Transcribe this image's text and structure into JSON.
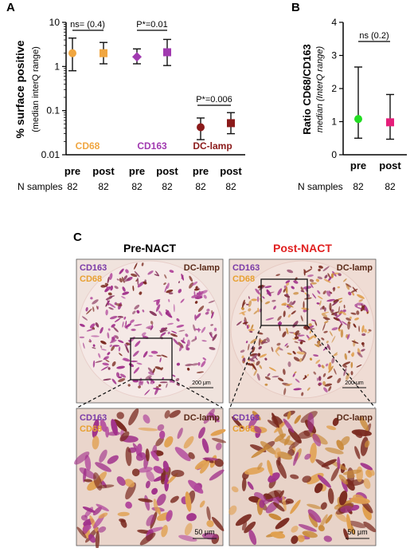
{
  "panels": {
    "a": "A",
    "b": "B",
    "c": "C"
  },
  "colors": {
    "cd68": "#f0a640",
    "cd163": "#a13ab0",
    "dclamp": "#8b1a1a",
    "ratio_pre": "#22dd22",
    "ratio_post": "#e61e7a",
    "post_nact_title": "#e02020",
    "tissue_bg": "#efdcd6"
  },
  "sample_row": {
    "label": "N samples"
  },
  "chart_data": [
    {
      "type": "scatter",
      "panel": "A",
      "ylabel": "% surface positive",
      "ylabel_sub": "(median interQ range)",
      "yscale": "log",
      "ylim": [
        0.01,
        10
      ],
      "yticks": [
        "0.01",
        "0.1",
        "1",
        "10"
      ],
      "groups": [
        "CD68",
        "CD163",
        "DC-lamp"
      ],
      "categories": [
        "pre",
        "post",
        "pre",
        "post",
        "pre",
        "post"
      ],
      "series": [
        {
          "name": "CD68",
          "x": [
            "pre",
            "post"
          ],
          "median": [
            2.0,
            2.0
          ],
          "q1": [
            0.8,
            1.15
          ],
          "q3": [
            4.4,
            3.5
          ],
          "markers": [
            "circle",
            "square"
          ]
        },
        {
          "name": "CD163",
          "x": [
            "pre",
            "post"
          ],
          "median": [
            1.65,
            2.1
          ],
          "q1": [
            1.15,
            1.05
          ],
          "q3": [
            2.5,
            4.1
          ],
          "markers": [
            "diamond",
            "square"
          ]
        },
        {
          "name": "DC-lamp",
          "x": [
            "pre",
            "post"
          ],
          "median": [
            0.042,
            0.052
          ],
          "q1": [
            0.022,
            0.03
          ],
          "q3": [
            0.068,
            0.09
          ],
          "markers": [
            "circle",
            "square"
          ]
        }
      ],
      "annotations": [
        "ns= (0.4)",
        "P*=0.01",
        "P*=0.006"
      ],
      "n_samples": [
        "82",
        "82",
        "82",
        "82",
        "82",
        "82"
      ]
    },
    {
      "type": "scatter",
      "panel": "B",
      "ylabel": "Ratio CD68/CD163",
      "ylabel_sub": "median (InterQ range)",
      "ylim": [
        0,
        4
      ],
      "yticks": [
        "0",
        "1",
        "2",
        "3",
        "4"
      ],
      "categories": [
        "pre",
        "post"
      ],
      "series": [
        {
          "x": [
            "pre",
            "post"
          ],
          "median": [
            1.08,
            0.98
          ],
          "q1": [
            0.5,
            0.47
          ],
          "q3": [
            2.65,
            1.82
          ],
          "markers": [
            "circle",
            "square"
          ]
        }
      ],
      "annotations": [
        "ns (0.2)"
      ],
      "n_samples": [
        "82",
        "82"
      ]
    }
  ],
  "panel_c": {
    "titles": [
      "Pre-NACT",
      "Post-NACT"
    ],
    "labels": {
      "cd163": "CD163",
      "cd68": "CD68",
      "dclamp": "DC-lamp"
    },
    "scalebar_low": "200 μm",
    "scalebar_high": "50 μm"
  }
}
